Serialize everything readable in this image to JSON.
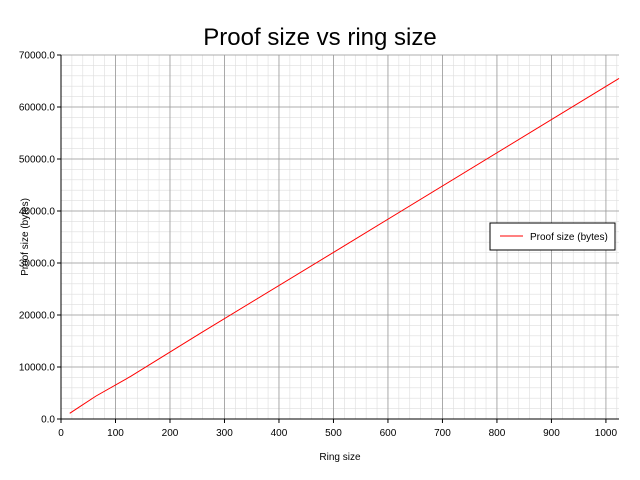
{
  "chart_data": {
    "type": "line",
    "title": "Proof size vs ring size",
    "xlabel": "Ring size",
    "ylabel": "Proof size (bytes)",
    "xlim": [
      0,
      1024
    ],
    "ylim": [
      0,
      70000
    ],
    "xticks": [
      0,
      100,
      200,
      300,
      400,
      500,
      600,
      700,
      800,
      900,
      1000
    ],
    "xtick_labels": [
      "0",
      "100",
      "200",
      "300",
      "400",
      "500",
      "600",
      "700",
      "800",
      "900",
      "1000"
    ],
    "yticks": [
      0,
      10000,
      20000,
      30000,
      40000,
      50000,
      60000,
      70000
    ],
    "ytick_labels": [
      "0.0",
      "10000.0",
      "20000.0",
      "30000.0",
      "40000.0",
      "50000.0",
      "60000.0",
      "70000.0"
    ],
    "grid": true,
    "legend_position": "right",
    "series": [
      {
        "name": "Proof size (bytes)",
        "color": "#ff0000",
        "x": [
          16,
          32,
          64,
          128,
          256,
          512,
          1024
        ],
        "y": [
          1100,
          2200,
          4400,
          8200,
          16500,
          32800,
          65500
        ]
      }
    ]
  }
}
